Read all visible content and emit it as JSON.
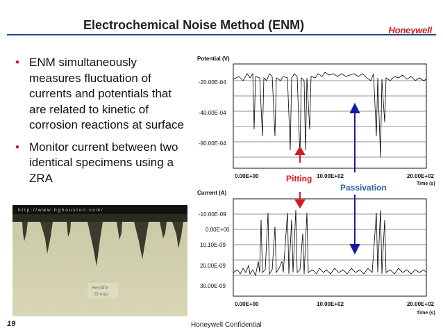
{
  "slide": {
    "title": "Electrochemical Noise Method (ENM)",
    "logo": "Honeywell",
    "page_number": "19",
    "confidential": "Honeywell Confidential"
  },
  "bullets": [
    "ENM simultaneously measures fluctuation of currents and potentials that are related to kinetic of corrosion reactions at surface",
    "Monitor current between two identical specimens using a ZRA"
  ],
  "photo": {
    "url_banner": "h t t p : / / w w w . h g h o u s t o n . c o m /",
    "watermark_line1": "Hendrix",
    "watermark_line2": "Group"
  },
  "annotations": {
    "pitting": "Pitting",
    "passivation": "Passivation",
    "pitting_color": "#d71920",
    "passivation_color": "#2a63a8"
  },
  "potential_plot": {
    "ylabel": "Potential (V)",
    "yticks": [
      "-20.00E-04",
      "-40.00E-04",
      "-80.00E-04"
    ],
    "xticks": [
      "0.00E+00",
      "10.00E+02",
      "20.00E+02"
    ],
    "xlabel": "Time (s)"
  },
  "current_plot": {
    "ylabel": "Current (A)",
    "yticks": [
      "-10.00E-09",
      "0.00E+00",
      "10.10E-09",
      "20.00E-09",
      "30.00E-09"
    ],
    "xticks": [
      "0.00E+00",
      "10.00E+02",
      "20.00E+02"
    ],
    "xlabel": "Time (s)"
  }
}
